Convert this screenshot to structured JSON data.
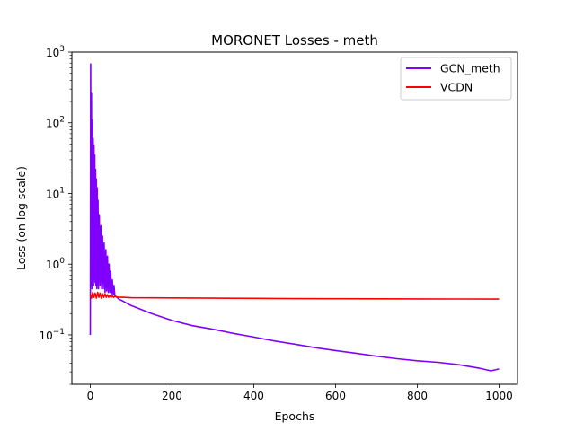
{
  "chart_data": {
    "type": "line",
    "title": "MORONET Losses - meth",
    "xlabel": "Epochs",
    "ylabel": "Loss (on log scale)",
    "yscale": "log",
    "xlim": [
      -45,
      1045
    ],
    "ylim": [
      0.02,
      1000
    ],
    "x_ticks": [
      0,
      200,
      400,
      600,
      800,
      1000
    ],
    "y_ticks": [
      {
        "value": 0.1,
        "base": "10",
        "exp": "−1"
      },
      {
        "value": 1,
        "base": "10",
        "exp": "0"
      },
      {
        "value": 10,
        "base": "10",
        "exp": "1"
      },
      {
        "value": 100,
        "base": "10",
        "exp": "2"
      },
      {
        "value": 1000,
        "base": "10",
        "exp": "3"
      }
    ],
    "grid": false,
    "legend_position": "top-right",
    "series": [
      {
        "name": "GCN_meth",
        "color": "#8000ff",
        "x": [
          0,
          1,
          2,
          3,
          4,
          5,
          6,
          7,
          8,
          9,
          10,
          11,
          12,
          13,
          14,
          15,
          16,
          17,
          18,
          19,
          20,
          22,
          24,
          26,
          28,
          30,
          32,
          34,
          36,
          38,
          40,
          42,
          44,
          46,
          48,
          50,
          52,
          54,
          56,
          58,
          60,
          65,
          70,
          80,
          100,
          150,
          200,
          250,
          300,
          350,
          400,
          450,
          500,
          550,
          600,
          650,
          700,
          750,
          800,
          850,
          900,
          950,
          980,
          1000
        ],
        "values": [
          0.1,
          680,
          0.5,
          260,
          0.45,
          110,
          0.6,
          60,
          0.5,
          48,
          0.6,
          35,
          0.55,
          22,
          0.5,
          16,
          0.45,
          12,
          0.5,
          8,
          0.45,
          5,
          0.5,
          3.5,
          0.45,
          2.5,
          0.45,
          2,
          0.4,
          1.6,
          0.42,
          1.3,
          0.4,
          1.0,
          0.4,
          0.8,
          0.38,
          0.6,
          0.37,
          0.5,
          0.36,
          0.34,
          0.32,
          0.3,
          0.26,
          0.2,
          0.16,
          0.135,
          0.12,
          0.105,
          0.093,
          0.082,
          0.074,
          0.066,
          0.06,
          0.055,
          0.05,
          0.046,
          0.043,
          0.041,
          0.038,
          0.034,
          0.031,
          0.033
        ]
      },
      {
        "name": "VCDN",
        "color": "#ff0000",
        "x": [
          0,
          3,
          6,
          9,
          12,
          15,
          18,
          21,
          24,
          27,
          30,
          33,
          36,
          39,
          42,
          45,
          48,
          51,
          54,
          57,
          60,
          65,
          70,
          80,
          100,
          200,
          300,
          400,
          500,
          600,
          700,
          800,
          900,
          1000
        ],
        "values": [
          0.38,
          0.33,
          0.4,
          0.34,
          0.39,
          0.33,
          0.4,
          0.34,
          0.39,
          0.33,
          0.38,
          0.34,
          0.38,
          0.34,
          0.37,
          0.34,
          0.36,
          0.34,
          0.36,
          0.34,
          0.35,
          0.345,
          0.34,
          0.34,
          0.335,
          0.333,
          0.33,
          0.328,
          0.326,
          0.325,
          0.324,
          0.323,
          0.322,
          0.321
        ]
      }
    ]
  }
}
